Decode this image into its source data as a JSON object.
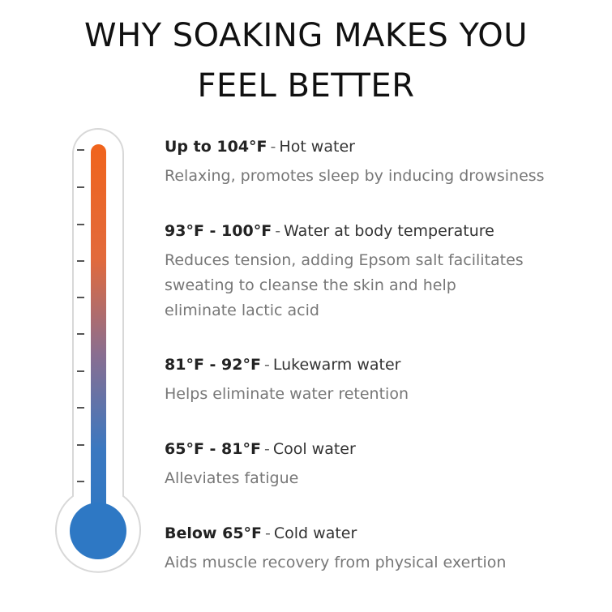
{
  "header": {
    "title_lines": [
      "WHY SOAKING MAKES YOU",
      "FEEL BETTER"
    ]
  },
  "items": [
    {
      "range": "Up to 104°F",
      "separator": "-",
      "name": "Hot water",
      "description_lines": [
        "Relaxing, promotes sleep by inducing drowsiness"
      ]
    },
    {
      "range": "93°F - 100°F",
      "separator": "-",
      "name": "Water at body temperature",
      "description_lines": [
        "Reduces tension, adding Epsom salt facilitates",
        "sweating to cleanse the skin and help",
        "eliminate lactic acid"
      ]
    },
    {
      "range": "81°F - 92°F",
      "separator": "-",
      "name": "Lukewarm water",
      "description_lines": [
        "Helps eliminate water retention"
      ]
    },
    {
      "range": "65°F - 81°F",
      "separator": "-",
      "name": "Cool water",
      "description_lines": [
        "Alleviates fatigue"
      ]
    },
    {
      "range": "Below 65°F",
      "separator": "-",
      "name": "Cold water",
      "description_lines": [
        "Aids muscle recovery from physical exertion"
      ]
    }
  ]
}
